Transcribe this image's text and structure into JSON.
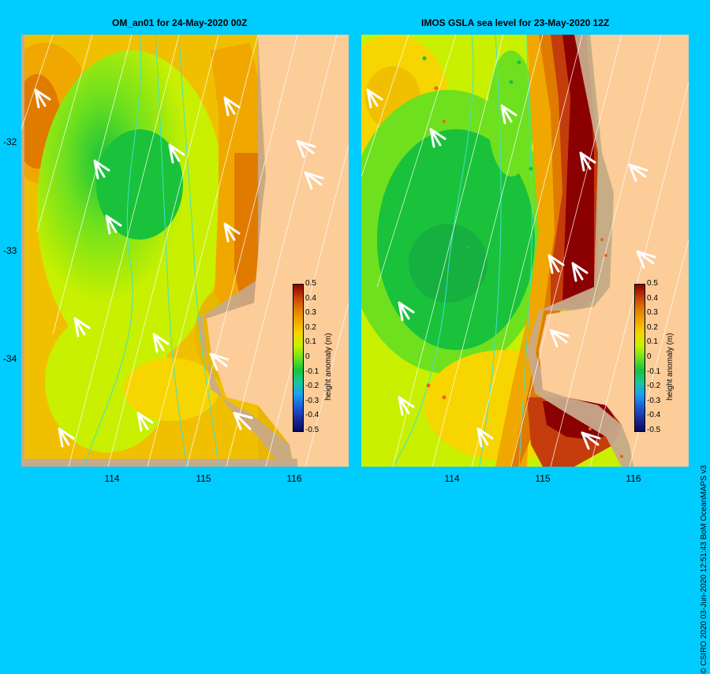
{
  "left_panel": {
    "title": "OM_an01  for 24-May-2020 00Z",
    "y_ticks": [
      "-32",
      "-33",
      "-34"
    ],
    "x_ticks": [
      "114",
      "115",
      "116"
    ]
  },
  "right_panel": {
    "title": "IMOS GSLA sea level  for 23-May-2020 12Z",
    "x_ticks": [
      "114",
      "115",
      "116"
    ]
  },
  "colorbar": {
    "title": "height anomaly (m)",
    "ticks": [
      "0.5",
      "0.4",
      "0.3",
      "0.2",
      "0.1",
      "0",
      "-0.1",
      "-0.2",
      "-0.3",
      "-0.4",
      "-0.5"
    ],
    "colors_top_to_bottom": [
      "#8b0000",
      "#c43c0c",
      "#e07b00",
      "#f0a800",
      "#f6d500",
      "#c8f000",
      "#6ee01e",
      "#19c23a",
      "#17c79a",
      "#1aa0f0",
      "#1e5ad8",
      "#1a2a9a",
      "#0a0a60"
    ]
  },
  "credit": "© CSIRO 2020   03-Jun-2020 12:51:43 BoM OceanMAPS v3",
  "colors": {
    "background": "#00ccff",
    "land": "#fccc99",
    "shelf": "#c7a98c",
    "depth_contour": "#40e0d0"
  }
}
